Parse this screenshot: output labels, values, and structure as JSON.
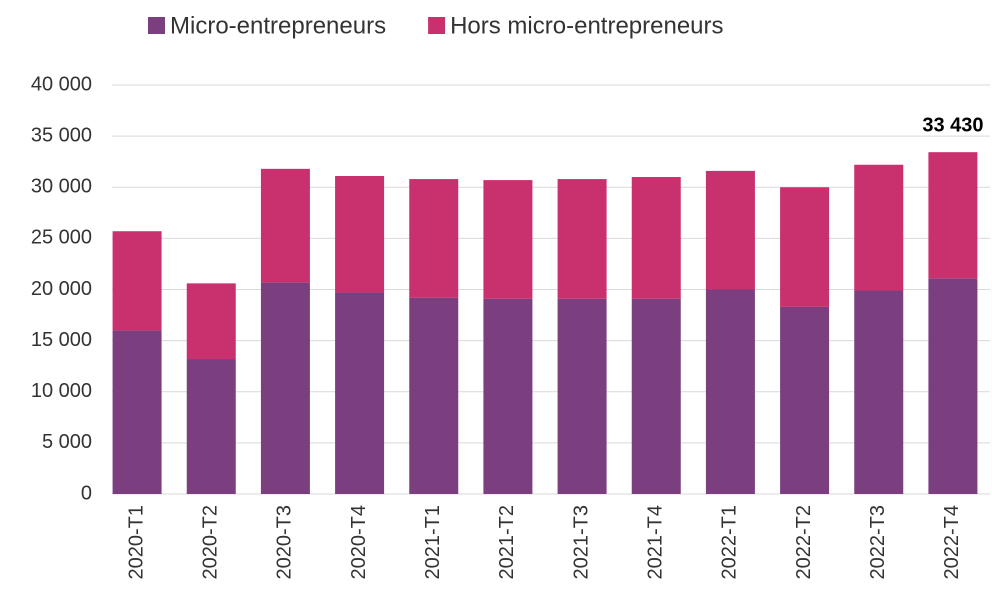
{
  "chart_data": {
    "type": "stacked_bar",
    "categories": [
      "2020-T1",
      "2020-T2",
      "2020-T3",
      "2020-T4",
      "2021-T1",
      "2021-T2",
      "2021-T3",
      "2021-T4",
      "2022-T1",
      "2022-T2",
      "2022-T3",
      "2022-T4"
    ],
    "series": [
      {
        "name": "Micro-entrepreneurs",
        "color": "#7b3f7f",
        "values": [
          16000,
          13200,
          20700,
          19700,
          19200,
          19100,
          19100,
          19100,
          20000,
          18300,
          19900,
          21100
        ]
      },
      {
        "name": "Hors micro-entrepreneurs",
        "color": "#c8316e",
        "values": [
          9700,
          7400,
          11100,
          11400,
          11600,
          11600,
          11700,
          11900,
          11600,
          11700,
          12300,
          12330
        ]
      }
    ],
    "annotation": {
      "value": 33430,
      "label": "33 430"
    },
    "ylim": [
      0,
      40000
    ],
    "yticks": [
      0,
      {
        "value": 5000,
        "label": "5 000"
      },
      {
        "value": 10000,
        "label": "10 000"
      },
      {
        "value": 15000,
        "label": "15 000"
      },
      {
        "value": 20000,
        "label": "20 000"
      },
      {
        "value": 25000,
        "label": "25 000"
      },
      {
        "value": 30000,
        "label": "30 000"
      },
      {
        "value": 35000,
        "label": "35 000"
      },
      {
        "value": 40000,
        "label": "40 000"
      }
    ],
    "grid": true,
    "legend": "top"
  }
}
